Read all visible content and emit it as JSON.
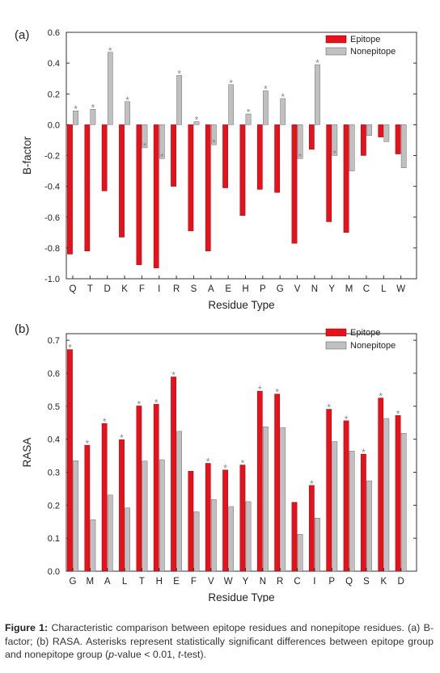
{
  "chart_data": [
    {
      "type": "bar",
      "panel_label": "(a)",
      "xlabel": "Residue Type",
      "ylabel": "B-factor",
      "ylim": [
        -1.0,
        0.6
      ],
      "yticks": [
        "-1.0",
        "-0.8",
        "-0.6",
        "-0.4",
        "-0.2",
        "0.0",
        "0.2",
        "0.4",
        "0.6"
      ],
      "yticks_values": [
        -1.0,
        -0.8,
        -0.6,
        -0.4,
        -0.2,
        0.0,
        0.2,
        0.4,
        0.6
      ],
      "legend_position": "top-right",
      "categories": [
        "Q",
        "T",
        "D",
        "K",
        "F",
        "I",
        "R",
        "S",
        "A",
        "E",
        "H",
        "P",
        "G",
        "V",
        "N",
        "Y",
        "M",
        "C",
        "L",
        "W"
      ],
      "series": [
        {
          "name": "Epitope",
          "color": "#e8101a",
          "values": [
            -0.84,
            -0.82,
            -0.43,
            -0.73,
            -0.91,
            -0.93,
            -0.4,
            -0.69,
            -0.82,
            -0.41,
            -0.59,
            -0.42,
            -0.44,
            -0.77,
            -0.16,
            -0.63,
            -0.7,
            -0.2,
            -0.08,
            -0.19
          ]
        },
        {
          "name": "Nonepitope",
          "color": "#c0c0c0",
          "values": [
            0.09,
            0.1,
            0.47,
            0.15,
            -0.15,
            -0.22,
            0.32,
            0.02,
            -0.13,
            0.26,
            0.07,
            0.22,
            0.17,
            -0.22,
            0.39,
            -0.2,
            -0.3,
            -0.07,
            -0.11,
            -0.28
          ]
        }
      ],
      "significant": [
        true,
        true,
        true,
        true,
        true,
        true,
        true,
        true,
        true,
        true,
        true,
        true,
        true,
        true,
        true,
        true,
        false,
        false,
        false,
        false
      ],
      "star_symbol": "*"
    },
    {
      "type": "bar",
      "panel_label": "(b)",
      "xlabel": "Residue Type",
      "ylabel": "RASA",
      "ylim": [
        0.0,
        0.72
      ],
      "yticks": [
        "0.0",
        "0.1",
        "0.2",
        "0.3",
        "0.4",
        "0.5",
        "0.6",
        "0.7"
      ],
      "yticks_values": [
        0.0,
        0.1,
        0.2,
        0.3,
        0.4,
        0.5,
        0.6,
        0.7
      ],
      "legend_position": "top-right",
      "categories": [
        "G",
        "M",
        "A",
        "L",
        "T",
        "H",
        "E",
        "F",
        "V",
        "W",
        "Y",
        "N",
        "R",
        "C",
        "I",
        "P",
        "Q",
        "S",
        "K",
        "D"
      ],
      "series": [
        {
          "name": "Epitope",
          "color": "#e8101a",
          "values": [
            0.672,
            0.382,
            0.448,
            0.399,
            0.501,
            0.506,
            0.589,
            0.303,
            0.327,
            0.307,
            0.322,
            0.546,
            0.537,
            0.209,
            0.26,
            0.491,
            0.456,
            0.355,
            0.525,
            0.472
          ]
        },
        {
          "name": "Nonepitope",
          "color": "#c0c0c0",
          "values": [
            0.335,
            0.156,
            0.231,
            0.192,
            0.334,
            0.338,
            0.424,
            0.18,
            0.217,
            0.196,
            0.211,
            0.438,
            0.435,
            0.112,
            0.161,
            0.393,
            0.364,
            0.274,
            0.463,
            0.418
          ]
        }
      ],
      "significant": [
        true,
        true,
        true,
        true,
        true,
        true,
        true,
        false,
        true,
        true,
        true,
        true,
        true,
        false,
        true,
        true,
        true,
        true,
        true,
        true
      ],
      "star_symbol": "*"
    }
  ],
  "caption": {
    "label": "Figure 1:",
    "text": "Characteristic comparison between epitope residues and nonepitope residues. (a) B-factor; (b) RASA. Asterisks represent statistically significant differences between epitope group and nonepitope group (",
    "p_italic": "p",
    "p_rest": "-value < 0.01, ",
    "t_italic": "t",
    "t_rest": "-test)."
  }
}
